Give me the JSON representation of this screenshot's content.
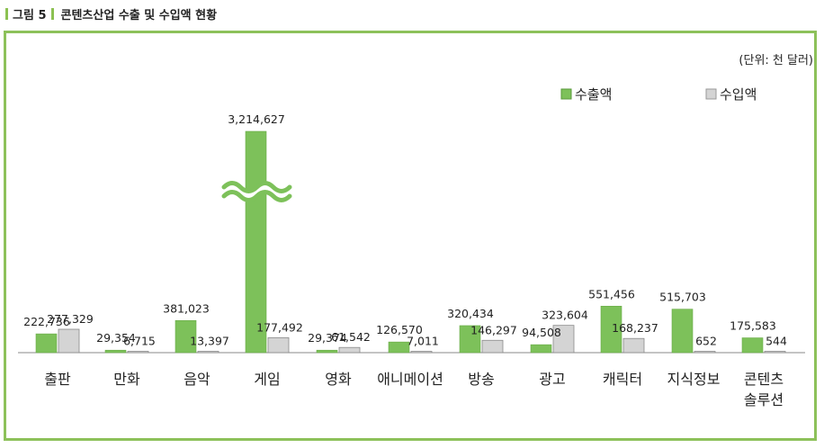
{
  "figure": {
    "number_label": "그림 5",
    "title": "콘텐츠산업 수출 및 수입액 현황"
  },
  "chart_data": {
    "type": "bar",
    "unit_label": "(단위: 천 달러)",
    "categories": [
      "출판",
      "만화",
      "음악",
      "게임",
      "영화",
      "애니메이션",
      "방송",
      "광고",
      "캐릭터",
      "지식정보",
      "콘텐츠\n솔루션"
    ],
    "series": [
      {
        "name": "수출액",
        "color": "#7dc15a",
        "values": [
          222736,
          29354,
          381023,
          3214627,
          29374,
          126570,
          320434,
          94508,
          551456,
          515703,
          175583
        ],
        "labels": [
          "222,736",
          "29,354",
          "381,023",
          "3,214,627",
          "29,374",
          "126,570",
          "320,434",
          "94,508",
          "551,456",
          "515,703",
          "175,583"
        ]
      },
      {
        "name": "수입액",
        "color": "#d4d4d4",
        "values": [
          277329,
          6715,
          13397,
          177492,
          61542,
          7011,
          146297,
          323604,
          168237,
          652,
          544
        ],
        "labels": [
          "277,329",
          "6,715",
          "13,397",
          "177,492",
          "61,542",
          "7,011",
          "146,297",
          "323,604",
          "168,237",
          "652",
          "544"
        ]
      }
    ],
    "axis_break": {
      "category": "게임",
      "series": "수출액"
    },
    "legend_position": "top-right",
    "grid": false
  }
}
